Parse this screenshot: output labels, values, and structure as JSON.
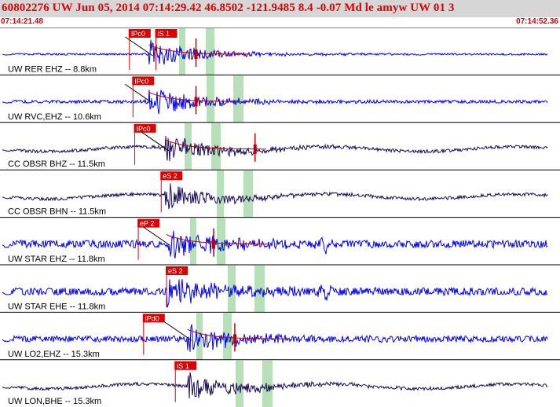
{
  "header": {
    "title": "60802276 UW Jun 05, 2014 07:14:29.42    46.8502 -121.9485  8.4 -0.07 Md le amyw UW 01   3",
    "start_time": "07:14:21.48",
    "end_time": "07:14:52.36"
  },
  "colors": {
    "header_bg": "#d6d6d6",
    "header_text": "#e00000",
    "trace_blue": "#0000ff",
    "trace_purple": "#1a0a5a",
    "pick_label_bg": "#e00000",
    "pick_window": "#b8e0b8",
    "coda_fit": "#c00000"
  },
  "traces": [
    {
      "label": "UW RER EHZ -- 8.8km",
      "color": "blue",
      "amp": 1.2,
      "arrival_s": 8.3,
      "picks": [
        {
          "text": "IPc0",
          "t": 7.2
        },
        {
          "text": "iS 1",
          "t": 8.7
        }
      ],
      "coda": true
    },
    {
      "label": "UW RVC,EHZ -- 10.6km",
      "color": "blue",
      "amp": 2.0,
      "arrival_s": 8.3,
      "picks": [
        {
          "text": "IPc0",
          "t": 7.4
        }
      ],
      "coda": true
    },
    {
      "label": "CC OBSR BHZ -- 11.5km",
      "color": "purple",
      "amp": 2.0,
      "arrival_s": 9.2,
      "picks": [
        {
          "text": "IPc0",
          "t": 7.5
        }
      ],
      "coda": true
    },
    {
      "label": "CC OBSR BHN -- 11.5km",
      "color": "purple",
      "amp": 2.0,
      "arrival_s": 9.2,
      "picks": [
        {
          "text": "eS 2",
          "t": 9.0
        }
      ],
      "coda": false
    },
    {
      "label": "UW STAR EHZ -- 11.8km",
      "color": "blue",
      "amp": 5.0,
      "arrival_s": 9.3,
      "picks": [
        {
          "text": "eP 2",
          "t": 7.7
        }
      ],
      "coda": true
    },
    {
      "label": "UW STAR EHE -- 11.8km",
      "color": "blue",
      "amp": 5.0,
      "arrival_s": 9.3,
      "picks": [
        {
          "text": "eS 2",
          "t": 9.3
        }
      ],
      "coda": false
    },
    {
      "label": "UW LO2,EHZ -- 15.3km",
      "color": "blue",
      "amp": 4.0,
      "arrival_s": 10.5,
      "picks": [
        {
          "text": "iPd0",
          "t": 8.0
        }
      ],
      "coda": true
    },
    {
      "label": "UW LON,BHE -- 15.3km",
      "color": "purple",
      "amp": 2.0,
      "arrival_s": 10.5,
      "picks": [
        {
          "text": "iS 1",
          "t": 9.8
        }
      ],
      "coda": false
    }
  ]
}
